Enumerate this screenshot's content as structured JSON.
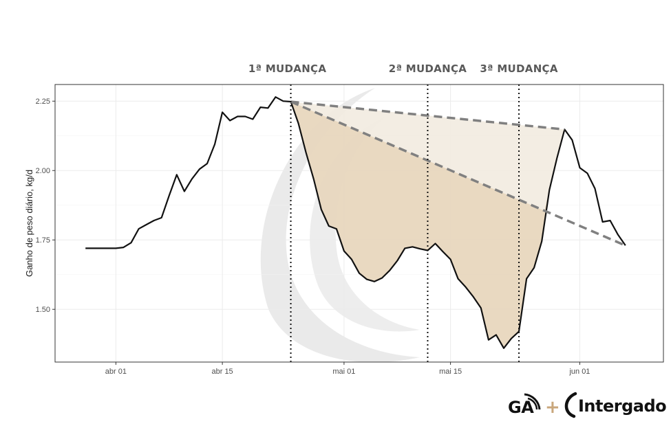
{
  "chart_data": {
    "type": "line",
    "ylabel": "Ganho de peso diário, kg/d",
    "xlabel": "",
    "title": "",
    "ylim": [
      1.31,
      2.31
    ],
    "xlim": [
      "2020-03-24",
      "2020-06-12"
    ],
    "grid": true,
    "x_ticks": [
      {
        "date": "2020-04-01",
        "label": "abr 01"
      },
      {
        "date": "2020-04-15",
        "label": "abr 15"
      },
      {
        "date": "2020-05-01",
        "label": "mai 01"
      },
      {
        "date": "2020-05-15",
        "label": "mai 15"
      },
      {
        "date": "2020-06-01",
        "label": "jun 01"
      }
    ],
    "y_ticks": [
      {
        "value": 1.5,
        "label": "1.50"
      },
      {
        "value": 1.75,
        "label": "1.75"
      },
      {
        "value": 2.0,
        "label": "2.00"
      },
      {
        "value": 2.25,
        "label": "2.25"
      }
    ],
    "series": [
      {
        "color": "#111111",
        "points": [
          [
            "2020-03-28",
            1.72
          ],
          [
            "2020-03-29",
            1.72
          ],
          [
            "2020-03-30",
            1.72
          ],
          [
            "2020-03-31",
            1.72
          ],
          [
            "2020-04-01",
            1.72
          ],
          [
            "2020-04-02",
            1.723
          ],
          [
            "2020-04-03",
            1.74
          ],
          [
            "2020-04-04",
            1.79
          ],
          [
            "2020-04-05",
            1.805
          ],
          [
            "2020-04-06",
            1.82
          ],
          [
            "2020-04-07",
            1.83
          ],
          [
            "2020-04-08",
            1.91
          ],
          [
            "2020-04-09",
            1.985
          ],
          [
            "2020-04-10",
            1.925
          ],
          [
            "2020-04-11",
            1.97
          ],
          [
            "2020-04-12",
            2.005
          ],
          [
            "2020-04-13",
            2.025
          ],
          [
            "2020-04-14",
            2.095
          ],
          [
            "2020-04-15",
            2.21
          ],
          [
            "2020-04-16",
            2.18
          ],
          [
            "2020-04-17",
            2.195
          ],
          [
            "2020-04-18",
            2.195
          ],
          [
            "2020-04-19",
            2.185
          ],
          [
            "2020-04-20",
            2.228
          ],
          [
            "2020-04-21",
            2.225
          ],
          [
            "2020-04-22",
            2.265
          ],
          [
            "2020-04-23",
            2.25
          ],
          [
            "2020-04-24",
            2.248
          ],
          [
            "2020-04-25",
            2.17
          ],
          [
            "2020-04-26",
            2.065
          ],
          [
            "2020-04-27",
            1.97
          ],
          [
            "2020-04-28",
            1.86
          ],
          [
            "2020-04-29",
            1.8
          ],
          [
            "2020-04-30",
            1.79
          ],
          [
            "2020-05-01",
            1.71
          ],
          [
            "2020-05-02",
            1.68
          ],
          [
            "2020-05-03",
            1.63
          ],
          [
            "2020-05-04",
            1.608
          ],
          [
            "2020-05-05",
            1.6
          ],
          [
            "2020-05-06",
            1.613
          ],
          [
            "2020-05-07",
            1.64
          ],
          [
            "2020-05-08",
            1.675
          ],
          [
            "2020-05-09",
            1.72
          ],
          [
            "2020-05-10",
            1.725
          ],
          [
            "2020-05-11",
            1.718
          ],
          [
            "2020-05-12",
            1.712
          ],
          [
            "2020-05-13",
            1.737
          ],
          [
            "2020-05-14",
            1.708
          ],
          [
            "2020-05-15",
            1.68
          ],
          [
            "2020-05-16",
            1.61
          ],
          [
            "2020-05-17",
            1.58
          ],
          [
            "2020-05-18",
            1.545
          ],
          [
            "2020-05-19",
            1.505
          ],
          [
            "2020-05-20",
            1.39
          ],
          [
            "2020-05-21",
            1.408
          ],
          [
            "2020-05-22",
            1.36
          ],
          [
            "2020-05-23",
            1.395
          ],
          [
            "2020-05-24",
            1.42
          ],
          [
            "2020-05-25",
            1.61
          ],
          [
            "2020-05-26",
            1.65
          ],
          [
            "2020-05-27",
            1.745
          ],
          [
            "2020-05-28",
            1.93
          ],
          [
            "2020-05-29",
            2.045
          ],
          [
            "2020-05-30",
            2.148
          ],
          [
            "2020-05-31",
            2.11
          ],
          [
            "2020-06-01",
            2.01
          ],
          [
            "2020-06-02",
            1.99
          ],
          [
            "2020-06-03",
            1.935
          ],
          [
            "2020-06-04",
            1.815
          ],
          [
            "2020-06-05",
            1.82
          ],
          [
            "2020-06-06",
            1.77
          ],
          [
            "2020-06-07",
            1.73
          ]
        ]
      }
    ],
    "trend_lines": [
      {
        "from": [
          "2020-04-24",
          2.248
        ],
        "to": [
          "2020-05-30",
          2.148
        ],
        "style": "dashed",
        "color": "#808080"
      },
      {
        "from": [
          "2020-04-24",
          2.248
        ],
        "to": [
          "2020-06-07",
          1.73
        ],
        "style": "dashed",
        "color": "#808080"
      }
    ],
    "shaded_regions": [
      {
        "start": "2020-04-24",
        "end": "2020-05-30",
        "upper": "trend_line_1",
        "color": "#f2ebe0"
      },
      {
        "start": "2020-04-24",
        "end": "2020-05-28",
        "upper": "trend_line_2",
        "color": "#e6d5bb"
      }
    ],
    "vertical_lines": [
      {
        "date": "2020-04-24",
        "label": "1ª MUDANÇA"
      },
      {
        "date": "2020-05-12",
        "label": "2ª MUDANÇA"
      },
      {
        "date": "2020-05-24",
        "label": "3ª MUDANÇA"
      }
    ]
  },
  "logos": {
    "ga_text": "GA",
    "plus": "+",
    "intergado_text": "Intergado",
    "plus_color": "#c9a77c"
  }
}
